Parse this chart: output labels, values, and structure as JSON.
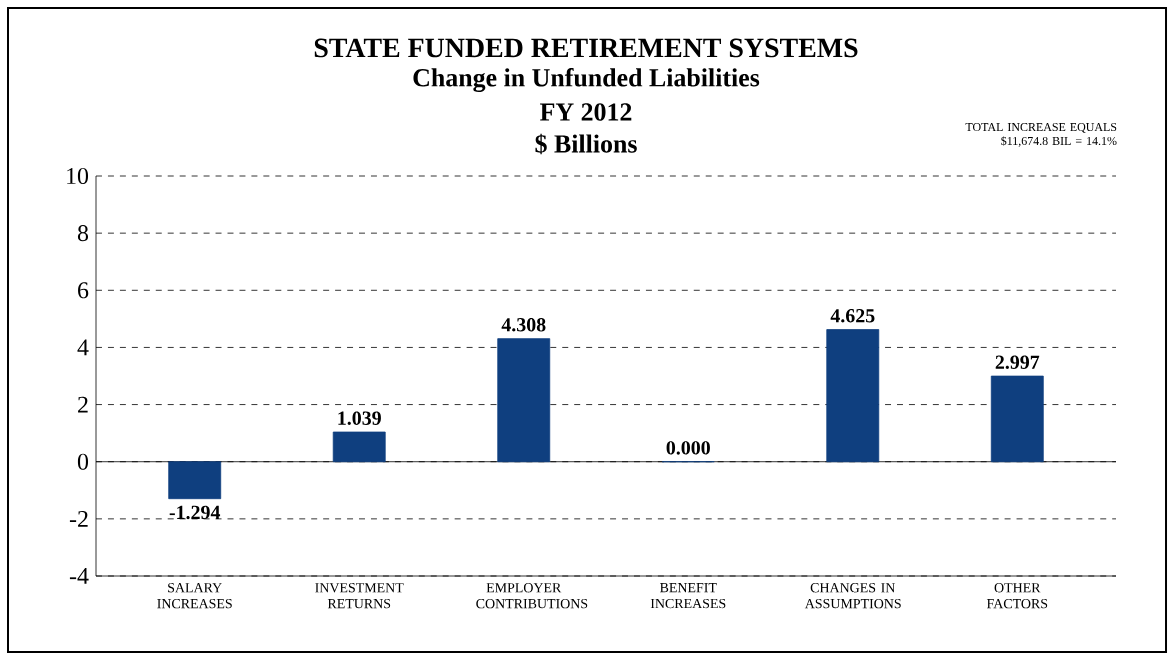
{
  "chart_data": {
    "type": "bar",
    "title": "STATE FUNDED RETIREMENT SYSTEMS",
    "subtitle": "Change in Unfunded Liabilities",
    "ylabel": "$ Billions",
    "annotations": [
      "FY 2012",
      "TOTAL INCREASE EQUALS $11,674.8 BIL = 14.1%"
    ],
    "categories": [
      "SALARY INCREASES",
      "INVESTMENT RETURNS",
      "EMPLOYER CONTRIBUTIONS",
      "BENEFIT INCREASES",
      "CHANGES IN ASSUMPTIONS",
      "OTHER FACTORS"
    ],
    "values": [
      -1.294,
      1.039,
      4.308,
      0.0,
      4.625,
      2.997
    ],
    "value_labels": [
      "-1.294",
      "1.039",
      "4.308",
      "0.000",
      "4.625",
      "2.997"
    ],
    "color": "#0f3f7f",
    "ylim": [
      -4,
      10
    ],
    "yticks": [
      -4,
      -2,
      0,
      2,
      4,
      6,
      8,
      10
    ],
    "grid": "y"
  }
}
